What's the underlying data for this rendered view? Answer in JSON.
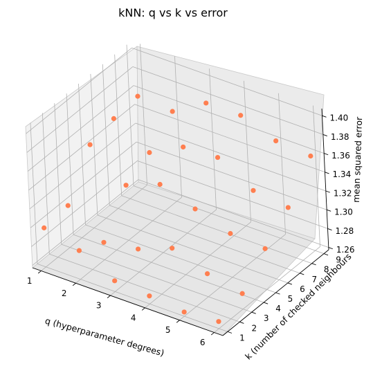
{
  "chart_data": {
    "type": "scatter",
    "title": "kNN: q vs k vs error",
    "xlabel": "q (hyperparameter degrees)",
    "ylabel": "k (number of checked neighbours",
    "zlabel": "mean squared error",
    "x_ticks": [
      1,
      2,
      3,
      4,
      5,
      6
    ],
    "y_ticks": [
      1,
      2,
      3,
      4,
      5,
      6,
      7,
      8,
      9
    ],
    "z_ticks": [
      "1.26",
      "1.28",
      "1.30",
      "1.32",
      "1.34",
      "1.36",
      "1.38",
      "1.40"
    ],
    "xlim": [
      0.75,
      6.25
    ],
    "ylim": [
      0.6,
      9.4
    ],
    "zlim": [
      1.2575,
      1.4075
    ],
    "grid": true,
    "color": "#ff7f50",
    "points": [
      {
        "q": 1,
        "k": 1,
        "error": 1.299
      },
      {
        "q": 1,
        "k": 3,
        "error": 1.302
      },
      {
        "q": 1,
        "k": 5,
        "error": 1.346
      },
      {
        "q": 1,
        "k": 7,
        "error": 1.353
      },
      {
        "q": 1,
        "k": 9,
        "error": 1.356
      },
      {
        "q": 2,
        "k": 1,
        "error": 1.288
      },
      {
        "q": 2,
        "k": 3,
        "error": 1.276
      },
      {
        "q": 2,
        "k": 5,
        "error": 1.316
      },
      {
        "q": 2,
        "k": 7,
        "error": 1.33
      },
      {
        "q": 2,
        "k": 9,
        "error": 1.353
      },
      {
        "q": 3,
        "k": 1,
        "error": 1.269
      },
      {
        "q": 3,
        "k": 3,
        "error": 1.282
      },
      {
        "q": 3,
        "k": 5,
        "error": 1.33
      },
      {
        "q": 3,
        "k": 7,
        "error": 1.349
      },
      {
        "q": 3,
        "k": 9,
        "error": 1.375
      },
      {
        "q": 4,
        "k": 1,
        "error": 1.266
      },
      {
        "q": 4,
        "k": 3,
        "error": 1.296
      },
      {
        "q": 4,
        "k": 5,
        "error": 1.317
      },
      {
        "q": 4,
        "k": 7,
        "error": 1.351
      },
      {
        "q": 4,
        "k": 9,
        "error": 1.375
      },
      {
        "q": 5,
        "k": 1,
        "error": 1.262
      },
      {
        "q": 5,
        "k": 3,
        "error": 1.282
      },
      {
        "q": 5,
        "k": 5,
        "error": 1.304
      },
      {
        "q": 5,
        "k": 7,
        "error": 1.329
      },
      {
        "q": 5,
        "k": 9,
        "error": 1.361
      },
      {
        "q": 6,
        "k": 1,
        "error": 1.265
      },
      {
        "q": 6,
        "k": 3,
        "error": 1.274
      },
      {
        "q": 6,
        "k": 5,
        "error": 1.301
      },
      {
        "q": 6,
        "k": 7,
        "error": 1.324
      },
      {
        "q": 6,
        "k": 9,
        "error": 1.358
      }
    ]
  }
}
